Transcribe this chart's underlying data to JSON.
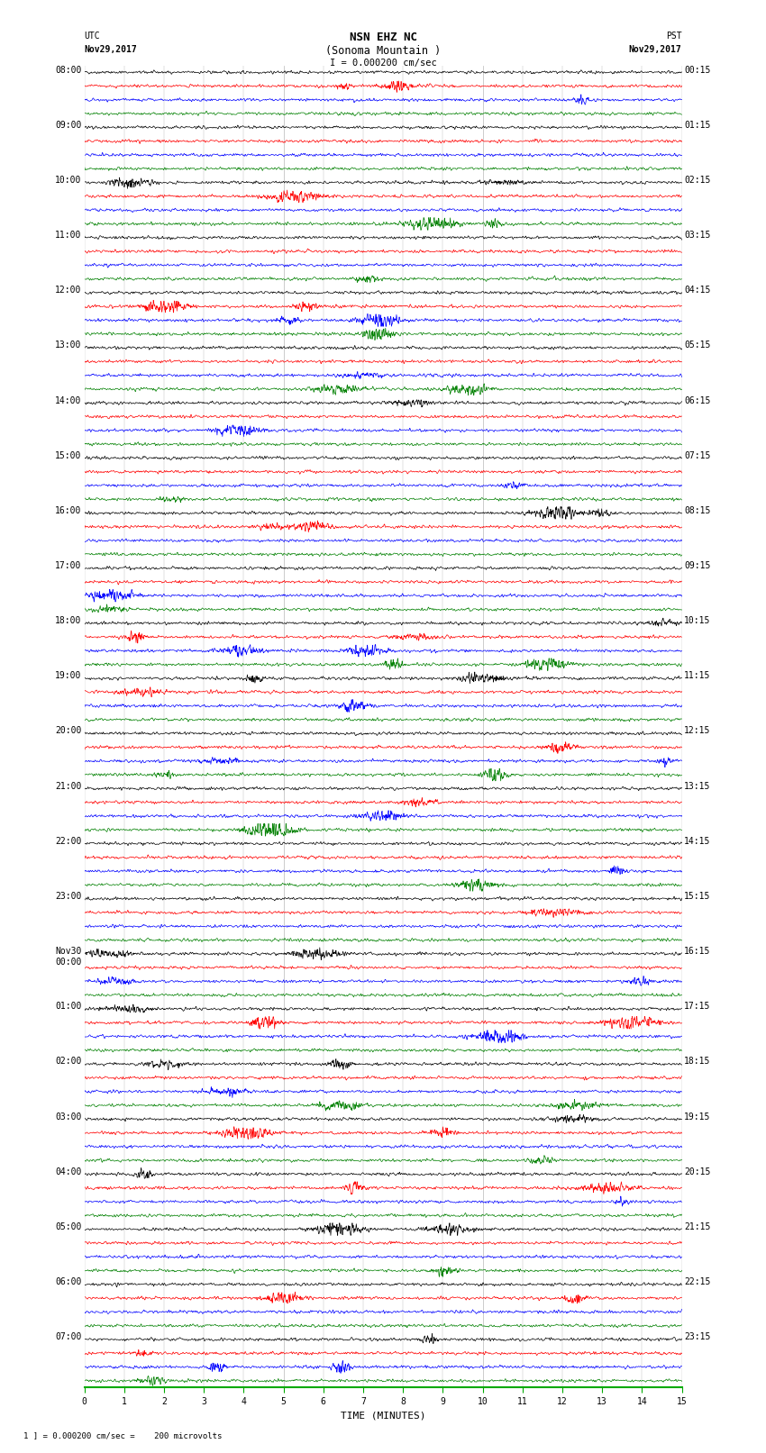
{
  "title_line1": "NSN EHZ NC",
  "title_line2": "(Sonoma Mountain )",
  "title_line3": "I = 0.000200 cm/sec",
  "left_label_top": "UTC",
  "left_label_date": "Nov29,2017",
  "right_label_top": "PST",
  "right_label_date": "Nov29,2017",
  "xlabel": "TIME (MINUTES)",
  "footnote": "1 ] = 0.000200 cm/sec =    200 microvolts",
  "bg_color": "#ffffff",
  "trace_colors": [
    "black",
    "red",
    "blue",
    "green"
  ],
  "grid_color": "#888888",
  "num_rows": 24,
  "traces_per_row": 4,
  "minutes_per_row": 15,
  "x_ticks": [
    0,
    1,
    2,
    3,
    4,
    5,
    6,
    7,
    8,
    9,
    10,
    11,
    12,
    13,
    14,
    15
  ],
  "pst_labels": [
    "00:15",
    "01:15",
    "02:15",
    "03:15",
    "04:15",
    "05:15",
    "06:15",
    "07:15",
    "08:15",
    "09:15",
    "10:15",
    "11:15",
    "12:15",
    "13:15",
    "14:15",
    "15:15",
    "16:15",
    "17:15",
    "18:15",
    "19:15",
    "20:15",
    "21:15",
    "22:15",
    "23:15"
  ],
  "utc_labels": [
    "08:00",
    "09:00",
    "10:00",
    "11:00",
    "12:00",
    "13:00",
    "14:00",
    "15:00",
    "16:00",
    "17:00",
    "18:00",
    "19:00",
    "20:00",
    "21:00",
    "22:00",
    "23:00",
    "Nov30\n00:00",
    "01:00",
    "02:00",
    "03:00",
    "04:00",
    "05:00",
    "06:00",
    "07:00"
  ],
  "amplitude_noise": 0.09,
  "amplitude_event": 0.28,
  "seed": 42,
  "vline_color": "#888888",
  "tick_color": "#00aa00",
  "axis_label_fontsize": 8,
  "tick_fontsize": 7,
  "title_fontsize": 9,
  "trace_lw": 0.5
}
